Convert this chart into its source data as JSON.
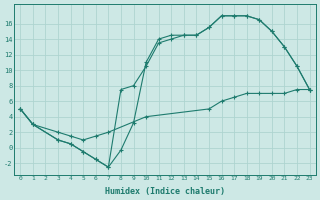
{
  "xlabel": "Humidex (Indice chaleur)",
  "bg_color": "#cde8e5",
  "line_color": "#1e7b6e",
  "grid_color": "#aed4d0",
  "xlim": [
    -0.5,
    23.5
  ],
  "ylim": [
    -3.5,
    18.5
  ],
  "xticks": [
    0,
    1,
    2,
    3,
    4,
    5,
    6,
    7,
    8,
    9,
    10,
    11,
    12,
    13,
    14,
    15,
    16,
    17,
    18,
    19,
    20,
    21,
    22,
    23
  ],
  "yticks": [
    -2,
    0,
    2,
    4,
    6,
    8,
    10,
    12,
    14,
    16
  ],
  "series1_x": [
    0,
    1,
    3,
    4,
    5,
    6,
    7,
    8,
    9,
    10,
    11,
    12,
    13,
    14,
    15,
    16,
    17,
    18,
    19,
    20,
    21,
    22,
    23
  ],
  "series1_y": [
    5,
    3,
    1,
    0.5,
    -0.5,
    -1.5,
    -2.5,
    -0.3,
    3.2,
    11,
    14,
    14.5,
    14.5,
    14.5,
    15.5,
    17,
    17,
    17,
    16.5,
    15,
    13,
    10.5,
    7.5
  ],
  "series2_x": [
    0,
    1,
    3,
    4,
    5,
    6,
    7,
    8,
    9,
    10,
    11,
    12,
    13,
    14,
    15,
    16,
    17,
    18,
    19,
    20,
    21,
    22,
    23
  ],
  "series2_y": [
    5,
    3,
    1,
    0.5,
    -0.5,
    -1.5,
    -2.5,
    7.5,
    8.0,
    10.5,
    13.5,
    14,
    14.5,
    14.5,
    15.5,
    17,
    17,
    17,
    16.5,
    15,
    13,
    10.5,
    7.5
  ],
  "series3_x": [
    0,
    1,
    3,
    4,
    5,
    6,
    7,
    10,
    15,
    16,
    17,
    18,
    19,
    20,
    21,
    22,
    23
  ],
  "series3_y": [
    5,
    3,
    2,
    1.5,
    1.0,
    1.5,
    2,
    4,
    5,
    6,
    6.5,
    7,
    7,
    7,
    7,
    7.5,
    7.5
  ]
}
